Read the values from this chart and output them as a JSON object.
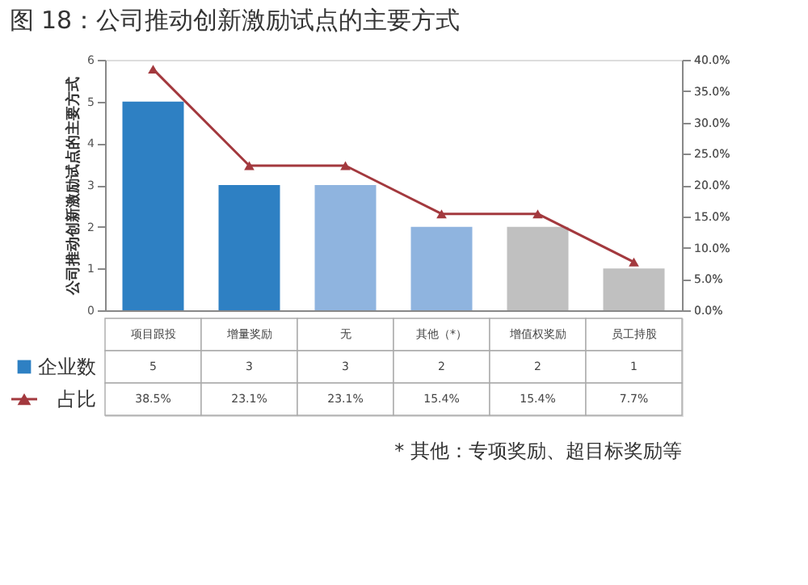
{
  "chart_data": {
    "type": "bar",
    "title": "图 18：公司推动创新激励试点的主要方式",
    "ylabel": "公司推动创新激励试点的主要方式",
    "categories": [
      "项目跟投",
      "增量奖励",
      "无",
      "其他（*）",
      "增值权奖励",
      "员工持股"
    ],
    "series": [
      {
        "name": "企业数",
        "color": "#2e80c3",
        "colors": [
          "#2e80c3",
          "#2e80c3",
          "#8fb4df",
          "#8fb4df",
          "#c0c0c0",
          "#c0c0c0"
        ],
        "values": [
          5,
          3,
          3,
          2,
          2,
          1
        ],
        "value_labels": [
          "5",
          "3",
          "3",
          "2",
          "2",
          "1"
        ]
      },
      {
        "name": "占比",
        "type": "line",
        "axis": "y2",
        "color": "#a3393e",
        "marker": "triangle",
        "line_style": "solid",
        "values": [
          38.5,
          23.1,
          23.1,
          15.4,
          15.4,
          7.7
        ],
        "value_labels": [
          "38.5%",
          "23.1%",
          "23.1%",
          "15.4%",
          "15.4%",
          "7.7%"
        ]
      }
    ],
    "ylim": [
      0,
      6
    ],
    "yticks": [
      0,
      1,
      2,
      3,
      4,
      5,
      6
    ],
    "y2lim": [
      0,
      40
    ],
    "y2ticks": [
      {
        "value": 0,
        "label": "0.0%"
      },
      {
        "value": 5,
        "label": "5.0%"
      },
      {
        "value": 10,
        "label": "10.0%"
      },
      {
        "value": 15,
        "label": "15.0%"
      },
      {
        "value": 20,
        "label": "20.0%"
      },
      {
        "value": 25,
        "label": "25.0%"
      },
      {
        "value": 30,
        "label": "30.0%"
      },
      {
        "value": 35,
        "label": "35.0%"
      },
      {
        "value": 40,
        "label": "40.0%"
      }
    ],
    "grid": false,
    "legend": "bottom",
    "annotations": [
      "* 其他：专项奖励、超目标奖励等"
    ]
  }
}
